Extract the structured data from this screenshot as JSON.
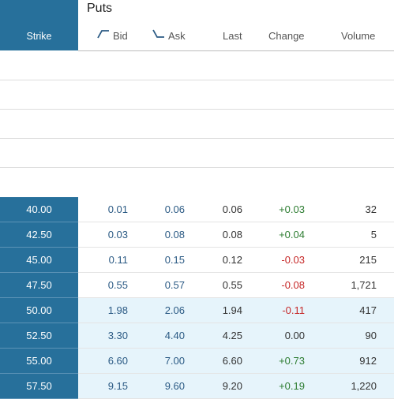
{
  "header": {
    "section_title": "Puts",
    "columns": {
      "strike": "Strike",
      "bid": "Bid",
      "ask": "Ask",
      "last": "Last",
      "change": "Change",
      "volume": "Volume"
    }
  },
  "colors": {
    "strike_bg": "#27709b",
    "in_the_money_bg": "#e6f4fb",
    "positive": "#2e7d32",
    "negative": "#c62828"
  },
  "rows": [
    {
      "strike": "40.00",
      "bid": "0.01",
      "ask": "0.06",
      "last": "0.06",
      "change": "+0.03",
      "volume": "32",
      "itm": false
    },
    {
      "strike": "42.50",
      "bid": "0.03",
      "ask": "0.08",
      "last": "0.08",
      "change": "+0.04",
      "volume": "5",
      "itm": false
    },
    {
      "strike": "45.00",
      "bid": "0.11",
      "ask": "0.15",
      "last": "0.12",
      "change": "-0.03",
      "volume": "215",
      "itm": false
    },
    {
      "strike": "47.50",
      "bid": "0.55",
      "ask": "0.57",
      "last": "0.55",
      "change": "-0.08",
      "volume": "1,721",
      "itm": false
    },
    {
      "strike": "50.00",
      "bid": "1.98",
      "ask": "2.06",
      "last": "1.94",
      "change": "-0.11",
      "volume": "417",
      "itm": true
    },
    {
      "strike": "52.50",
      "bid": "3.30",
      "ask": "4.40",
      "last": "4.25",
      "change": "0.00",
      "volume": "90",
      "itm": true
    },
    {
      "strike": "55.00",
      "bid": "6.60",
      "ask": "7.00",
      "last": "6.60",
      "change": "+0.73",
      "volume": "912",
      "itm": true
    },
    {
      "strike": "57.50",
      "bid": "9.15",
      "ask": "9.60",
      "last": "9.20",
      "change": "+0.19",
      "volume": "1,220",
      "itm": true
    }
  ]
}
